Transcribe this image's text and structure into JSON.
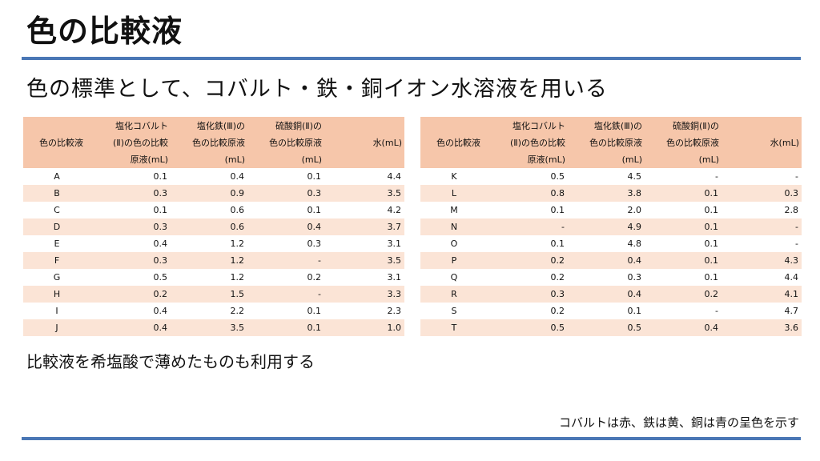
{
  "title": "色の比較液",
  "subtitle": "色の標準として、コバルト・鉄・銅イオン水溶液を用いる",
  "note": "比較液を希塩酸で薄めたものも利用する",
  "footnote": "コバルトは赤、鉄は黄、銅は青の呈色を示す",
  "colors": {
    "rule": "#4a77b5",
    "header_bg": "#f6c6aa",
    "stripe_bg": "#fbe4d6"
  },
  "tables": [
    {
      "headers": [
        "色の比較液",
        "塩化コバルト\n(Ⅱ)の色の比較\n原液(mL)",
        "塩化鉄(Ⅲ)の\n色の比較原液\n(mL)",
        "硫酸銅(Ⅱ)の\n色の比較原液\n(mL)",
        "水(mL)"
      ],
      "rows": [
        [
          "A",
          "0.1",
          "0.4",
          "0.1",
          "4.4"
        ],
        [
          "B",
          "0.3",
          "0.9",
          "0.3",
          "3.5"
        ],
        [
          "C",
          "0.1",
          "0.6",
          "0.1",
          "4.2"
        ],
        [
          "D",
          "0.3",
          "0.6",
          "0.4",
          "3.7"
        ],
        [
          "E",
          "0.4",
          "1.2",
          "0.3",
          "3.1"
        ],
        [
          "F",
          "0.3",
          "1.2",
          "-",
          "3.5"
        ],
        [
          "G",
          "0.5",
          "1.2",
          "0.2",
          "3.1"
        ],
        [
          "H",
          "0.2",
          "1.5",
          "-",
          "3.3"
        ],
        [
          "I",
          "0.4",
          "2.2",
          "0.1",
          "2.3"
        ],
        [
          "J",
          "0.4",
          "3.5",
          "0.1",
          "1.0"
        ]
      ]
    },
    {
      "headers": [
        "色の比較液",
        "塩化コバルト\n(Ⅱ)の色の比較\n原液(mL)",
        "塩化鉄(Ⅲ)の\n色の比較原液\n(mL)",
        "硫酸銅(Ⅱ)の\n色の比較原液\n(mL)",
        "水(mL)"
      ],
      "rows": [
        [
          "K",
          "0.5",
          "4.5",
          "-",
          "-"
        ],
        [
          "L",
          "0.8",
          "3.8",
          "0.1",
          "0.3"
        ],
        [
          "M",
          "0.1",
          "2.0",
          "0.1",
          "2.8"
        ],
        [
          "N",
          "-",
          "4.9",
          "0.1",
          "-"
        ],
        [
          "O",
          "0.1",
          "4.8",
          "0.1",
          "-"
        ],
        [
          "P",
          "0.2",
          "0.4",
          "0.1",
          "4.3"
        ],
        [
          "Q",
          "0.2",
          "0.3",
          "0.1",
          "4.4"
        ],
        [
          "R",
          "0.3",
          "0.4",
          "0.2",
          "4.1"
        ],
        [
          "S",
          "0.2",
          "0.1",
          "-",
          "4.7"
        ],
        [
          "T",
          "0.5",
          "0.5",
          "0.4",
          "3.6"
        ]
      ]
    }
  ]
}
